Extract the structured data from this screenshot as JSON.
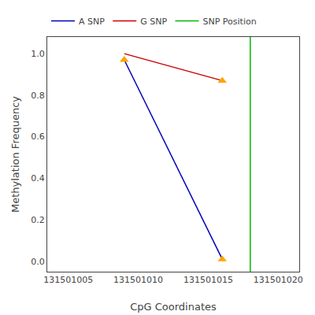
{
  "chart_data": {
    "type": "line",
    "xlabel": "CpG Coordinates",
    "ylabel": "Methylation Frequency",
    "series": [
      {
        "name": "A SNP",
        "type": "line",
        "color": "#0000bb",
        "x": [
          131501009,
          131501016
        ],
        "values": [
          0.97,
          0.01
        ]
      },
      {
        "type": "scatter",
        "marker": "triangle-up",
        "color": "#ffa500",
        "x": [
          131501009,
          131501016
        ],
        "values": [
          0.97,
          0.01
        ]
      },
      {
        "name": "G SNP",
        "type": "line",
        "color": "#cc0000",
        "x": [
          131501009,
          131501016
        ],
        "values": [
          1.0,
          0.87
        ]
      },
      {
        "type": "scatter",
        "marker": "circle-open",
        "color": "#cc0000",
        "x": [
          131501009
        ],
        "values": [
          1.0
        ]
      },
      {
        "type": "scatter",
        "marker": "triangle-up",
        "color": "#ffa500",
        "x": [
          131501016
        ],
        "values": [
          0.87
        ]
      },
      {
        "name": "SNP Position",
        "type": "vline",
        "color": "#00bb00",
        "x": [
          131501018
        ]
      }
    ],
    "xlim": [
      131501003.5,
      131501021.5
    ],
    "ylim": [
      -0.05,
      1.08
    ],
    "xticks": [
      131501005,
      131501010,
      131501015,
      131501020
    ],
    "yticks": [
      {
        "value": 0.0,
        "label": "0.0"
      },
      0.2,
      0.4,
      0.6,
      0.8,
      {
        "value": 1.0,
        "label": "1.0"
      }
    ],
    "grid": false,
    "legend": "top"
  }
}
